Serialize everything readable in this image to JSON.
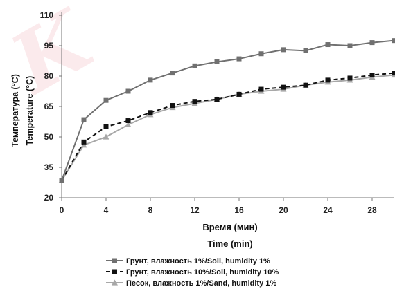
{
  "chart_data": {
    "type": "line",
    "xlabel_lines": [
      "Время (мин)",
      "Time (min)"
    ],
    "ylabel_lines": [
      "Температура (°C)",
      "Temperature (°C)"
    ],
    "xlim": [
      0,
      30
    ],
    "ylim": [
      20,
      110
    ],
    "xticks": [
      0,
      4,
      8,
      12,
      16,
      20,
      24,
      28
    ],
    "yticks": [
      20,
      35,
      50,
      65,
      80,
      95,
      110
    ],
    "grid": false,
    "legend_position": "bottom",
    "series": [
      {
        "name": "Грунт, влажность 1%/Soil, humidity 1%",
        "color": "#707070",
        "marker": "square",
        "dash": "solid",
        "x": [
          0,
          2,
          4,
          6,
          8,
          10,
          12,
          14,
          16,
          18,
          20,
          22,
          24,
          26,
          28,
          30
        ],
        "y": [
          28.5,
          58.5,
          68,
          72.5,
          78,
          81.5,
          85,
          87,
          88.5,
          91,
          93,
          92.5,
          95.5,
          95,
          96.5,
          97.5
        ]
      },
      {
        "name": "Грунт, влажность 10%/Soil, humidity 10%",
        "color": "#111111",
        "marker": "square",
        "dash": "dashed",
        "x": [
          0,
          2,
          4,
          6,
          8,
          10,
          12,
          14,
          16,
          18,
          20,
          22,
          24,
          26,
          28,
          30
        ],
        "y": [
          28.5,
          47.5,
          55,
          58,
          62,
          65.5,
          67.5,
          68.5,
          71,
          73.5,
          74.5,
          75.5,
          78,
          79,
          80.5,
          81.5
        ]
      },
      {
        "name": "Песок, влажность 1%/Sand, humidity 1%",
        "color": "#a8a8a8",
        "marker": "triangle",
        "dash": "solid",
        "x": [
          0,
          2,
          4,
          6,
          8,
          10,
          12,
          14,
          16,
          18,
          20,
          22,
          24,
          26,
          28,
          30
        ],
        "y": [
          28.5,
          46,
          50,
          56,
          61,
          64.5,
          66.5,
          68.5,
          71,
          72.5,
          73.5,
          75.5,
          77,
          78,
          79.5,
          80.5
        ]
      }
    ]
  }
}
